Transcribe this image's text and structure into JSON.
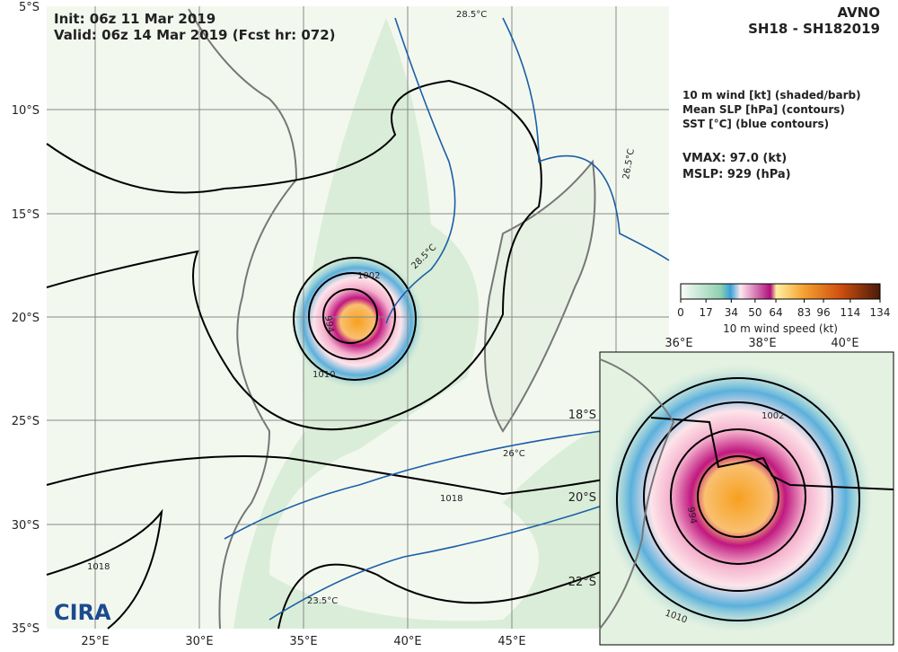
{
  "header": {
    "init": "Init:  06z 11 Mar 2019",
    "valid": "Valid: 06z 14 Mar 2019 (Fcst hr: 072)",
    "model": "AVNO",
    "storm": "SH18 - SH182019"
  },
  "legend": {
    "lines": [
      "10 m wind [kt] (shaded/barb)",
      "Mean SLP [hPa] (contours)",
      "SST [°C] (blue contours)"
    ],
    "vmax": "VMAX:  97.0 (kt)",
    "mslp": "MSLP:  929 (hPa)"
  },
  "colorbar": {
    "ticks": [
      0,
      17,
      34,
      50,
      64,
      83,
      96,
      114,
      134
    ],
    "range": [
      0,
      134
    ],
    "label": "10 m wind speed (kt)"
  },
  "map": {
    "lat_labels": [
      "5°S",
      "10°S",
      "15°S",
      "20°S",
      "25°S",
      "30°S",
      "35°S"
    ],
    "lon_labels": [
      "25°E",
      "30°E",
      "35°E",
      "40°E",
      "45°E"
    ],
    "contour_labels": [
      "1002",
      "994",
      "1010",
      "1018",
      "1018",
      "28.5°C",
      "28.5°C",
      "26°C",
      "23.5°C",
      "26.5°C"
    ],
    "logo": "CIRA"
  },
  "inset": {
    "lon_labels": [
      "36°E",
      "38°E",
      "40°E"
    ],
    "lat_labels": [
      "18°S",
      "20°S",
      "22°S"
    ],
    "contour_labels": [
      "1002",
      "994",
      "1010"
    ]
  }
}
